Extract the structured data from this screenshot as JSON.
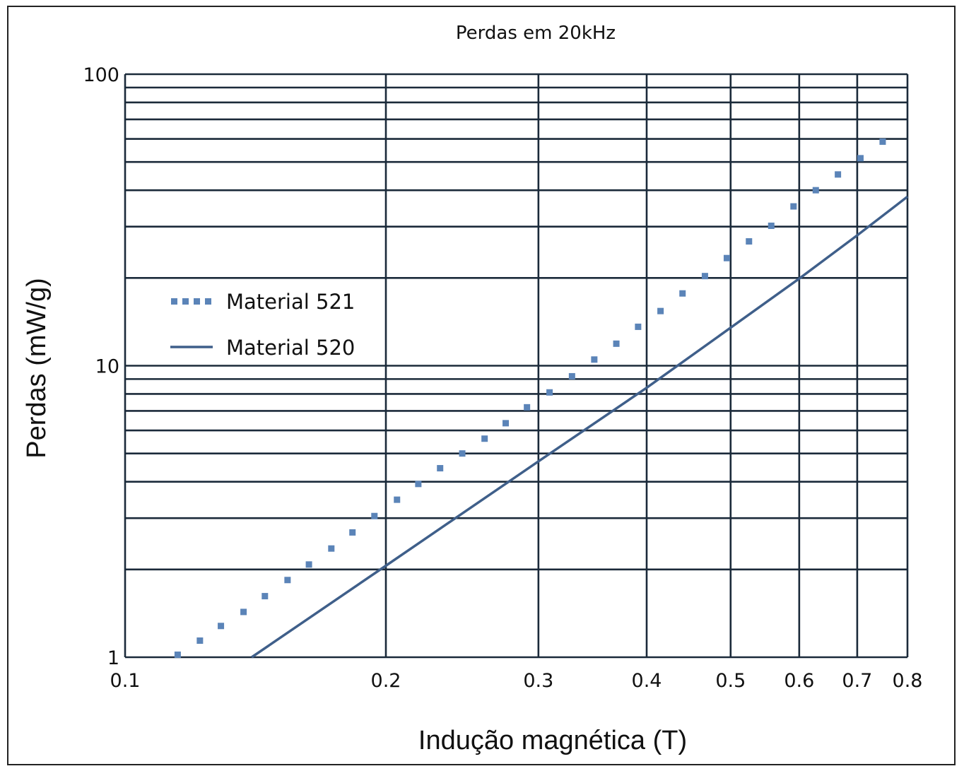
{
  "chart_data": {
    "type": "line",
    "title": "Perdas  em  20kHz",
    "xlabel": "Indução magnética (T)",
    "ylabel": "Perdas (mW/g)",
    "xscale": "log",
    "yscale": "log",
    "xlim": [
      0.1,
      0.8
    ],
    "ylim": [
      1,
      100
    ],
    "x_ticks": [
      "0.1",
      "0.2",
      "0.3",
      "0.4",
      "0.5",
      "0.6",
      "0.7",
      "0.8"
    ],
    "y_ticks": [
      "1",
      "10",
      "100"
    ],
    "grid": true,
    "legend_position": "left",
    "series": [
      {
        "name": "Material 521",
        "style": "dotted",
        "color": "#5b84b8",
        "points": [
          [
            0.115,
            1.02
          ],
          [
            0.122,
            1.14
          ],
          [
            0.129,
            1.28
          ],
          [
            0.137,
            1.43
          ],
          [
            0.145,
            1.62
          ],
          [
            0.154,
            1.84
          ],
          [
            0.163,
            2.08
          ],
          [
            0.173,
            2.36
          ],
          [
            0.183,
            2.68
          ],
          [
            0.194,
            3.05
          ],
          [
            0.206,
            3.47
          ],
          [
            0.218,
            3.93
          ],
          [
            0.231,
            4.45
          ],
          [
            0.245,
            5.0
          ],
          [
            0.26,
            5.62
          ],
          [
            0.275,
            6.35
          ],
          [
            0.291,
            7.2
          ],
          [
            0.309,
            8.1
          ],
          [
            0.328,
            9.2
          ],
          [
            0.348,
            10.5
          ],
          [
            0.369,
            11.9
          ],
          [
            0.391,
            13.6
          ],
          [
            0.415,
            15.4
          ],
          [
            0.44,
            17.7
          ],
          [
            0.467,
            20.3
          ],
          [
            0.495,
            23.4
          ],
          [
            0.525,
            26.7
          ],
          [
            0.557,
            30.2
          ],
          [
            0.591,
            35.2
          ],
          [
            0.627,
            40.0
          ],
          [
            0.665,
            45.3
          ],
          [
            0.706,
            51.5
          ],
          [
            0.749,
            58.7
          ]
        ]
      },
      {
        "name": "Material 520",
        "style": "solid",
        "color": "#3f5f8a",
        "points": [
          [
            0.14,
            1.0
          ],
          [
            0.2,
            2.06
          ],
          [
            0.3,
            4.7
          ],
          [
            0.4,
            8.4
          ],
          [
            0.5,
            13.5
          ],
          [
            0.6,
            19.9
          ],
          [
            0.7,
            28.0
          ],
          [
            0.8,
            38.0
          ]
        ]
      }
    ]
  }
}
